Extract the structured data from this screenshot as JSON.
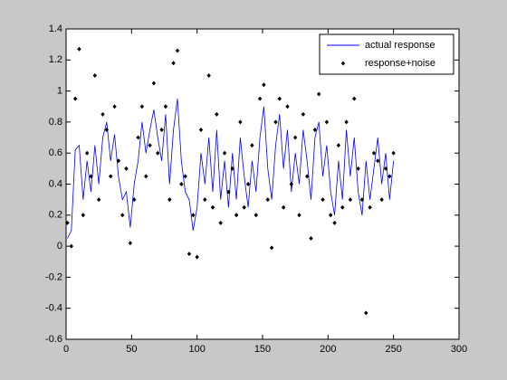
{
  "chart_data": {
    "type": "line-scatter",
    "xlim": [
      0,
      300
    ],
    "ylim": [
      -0.6,
      1.4
    ],
    "xticks": [
      0,
      50,
      100,
      150,
      200,
      250,
      300
    ],
    "yticks": [
      -0.6,
      -0.4,
      -0.2,
      0,
      0.2,
      0.4,
      0.6,
      0.8,
      1,
      1.2,
      1.4
    ],
    "grid": false,
    "legend": "upper right",
    "x": [
      1,
      4,
      7,
      10,
      13,
      16,
      19,
      22,
      25,
      28,
      31,
      34,
      37,
      40,
      43,
      46,
      49,
      52,
      55,
      58,
      61,
      64,
      67,
      70,
      73,
      76,
      79,
      82,
      85,
      88,
      91,
      94,
      97,
      100,
      103,
      106,
      109,
      112,
      115,
      118,
      121,
      124,
      127,
      130,
      133,
      136,
      139,
      142,
      145,
      148,
      151,
      154,
      157,
      160,
      163,
      166,
      169,
      172,
      175,
      178,
      181,
      184,
      187,
      190,
      193,
      196,
      199,
      202,
      205,
      208,
      211,
      214,
      217,
      220,
      223,
      226,
      229,
      232,
      235,
      238,
      241,
      244,
      247,
      250
    ],
    "series": [
      {
        "name": "actual response",
        "color": "#0000ff",
        "style": "line",
        "values": [
          0.05,
          0.1,
          0.62,
          0.65,
          0.3,
          0.55,
          0.35,
          0.65,
          0.4,
          0.7,
          0.8,
          0.55,
          0.72,
          0.45,
          0.3,
          0.35,
          0.12,
          0.4,
          0.55,
          0.8,
          0.6,
          0.75,
          0.88,
          0.7,
          0.55,
          0.85,
          0.4,
          0.75,
          0.95,
          0.55,
          0.35,
          0.3,
          0.1,
          0.25,
          0.6,
          0.4,
          0.7,
          0.35,
          0.75,
          0.3,
          0.55,
          0.25,
          0.6,
          0.3,
          0.7,
          0.45,
          0.25,
          0.55,
          0.35,
          0.7,
          0.9,
          0.5,
          0.3,
          0.65,
          0.85,
          0.5,
          0.75,
          0.35,
          0.6,
          0.4,
          0.75,
          0.55,
          0.3,
          0.7,
          0.8,
          0.45,
          0.65,
          0.35,
          0.2,
          0.55,
          0.3,
          0.75,
          0.45,
          0.7,
          0.35,
          0.2,
          0.55,
          0.3,
          0.5,
          0.7,
          0.4,
          0.6,
          0.3,
          0.55
        ]
      },
      {
        "name": "response+noise",
        "color": "#000000",
        "style": "markers",
        "values": [
          0.15,
          0.0,
          0.95,
          1.27,
          0.2,
          0.6,
          0.45,
          1.1,
          0.3,
          0.85,
          0.75,
          0.45,
          0.9,
          0.55,
          0.2,
          0.5,
          0.02,
          0.3,
          0.7,
          0.9,
          0.45,
          0.65,
          1.05,
          0.6,
          0.75,
          0.9,
          0.3,
          1.18,
          1.26,
          0.4,
          0.45,
          -0.05,
          0.2,
          -0.07,
          0.75,
          0.3,
          1.1,
          0.25,
          0.85,
          0.15,
          0.6,
          0.35,
          0.5,
          0.2,
          0.8,
          0.25,
          0.4,
          0.65,
          0.2,
          0.95,
          1.04,
          0.3,
          -0.01,
          0.8,
          0.95,
          0.25,
          0.9,
          0.4,
          0.7,
          0.2,
          0.85,
          0.45,
          0.05,
          0.75,
          0.98,
          0.3,
          0.8,
          0.2,
          0.15,
          0.65,
          0.25,
          0.8,
          0.3,
          0.95,
          0.5,
          0.3,
          -0.43,
          0.25,
          0.6,
          0.55,
          0.3,
          0.5,
          0.45,
          0.6
        ]
      }
    ]
  }
}
